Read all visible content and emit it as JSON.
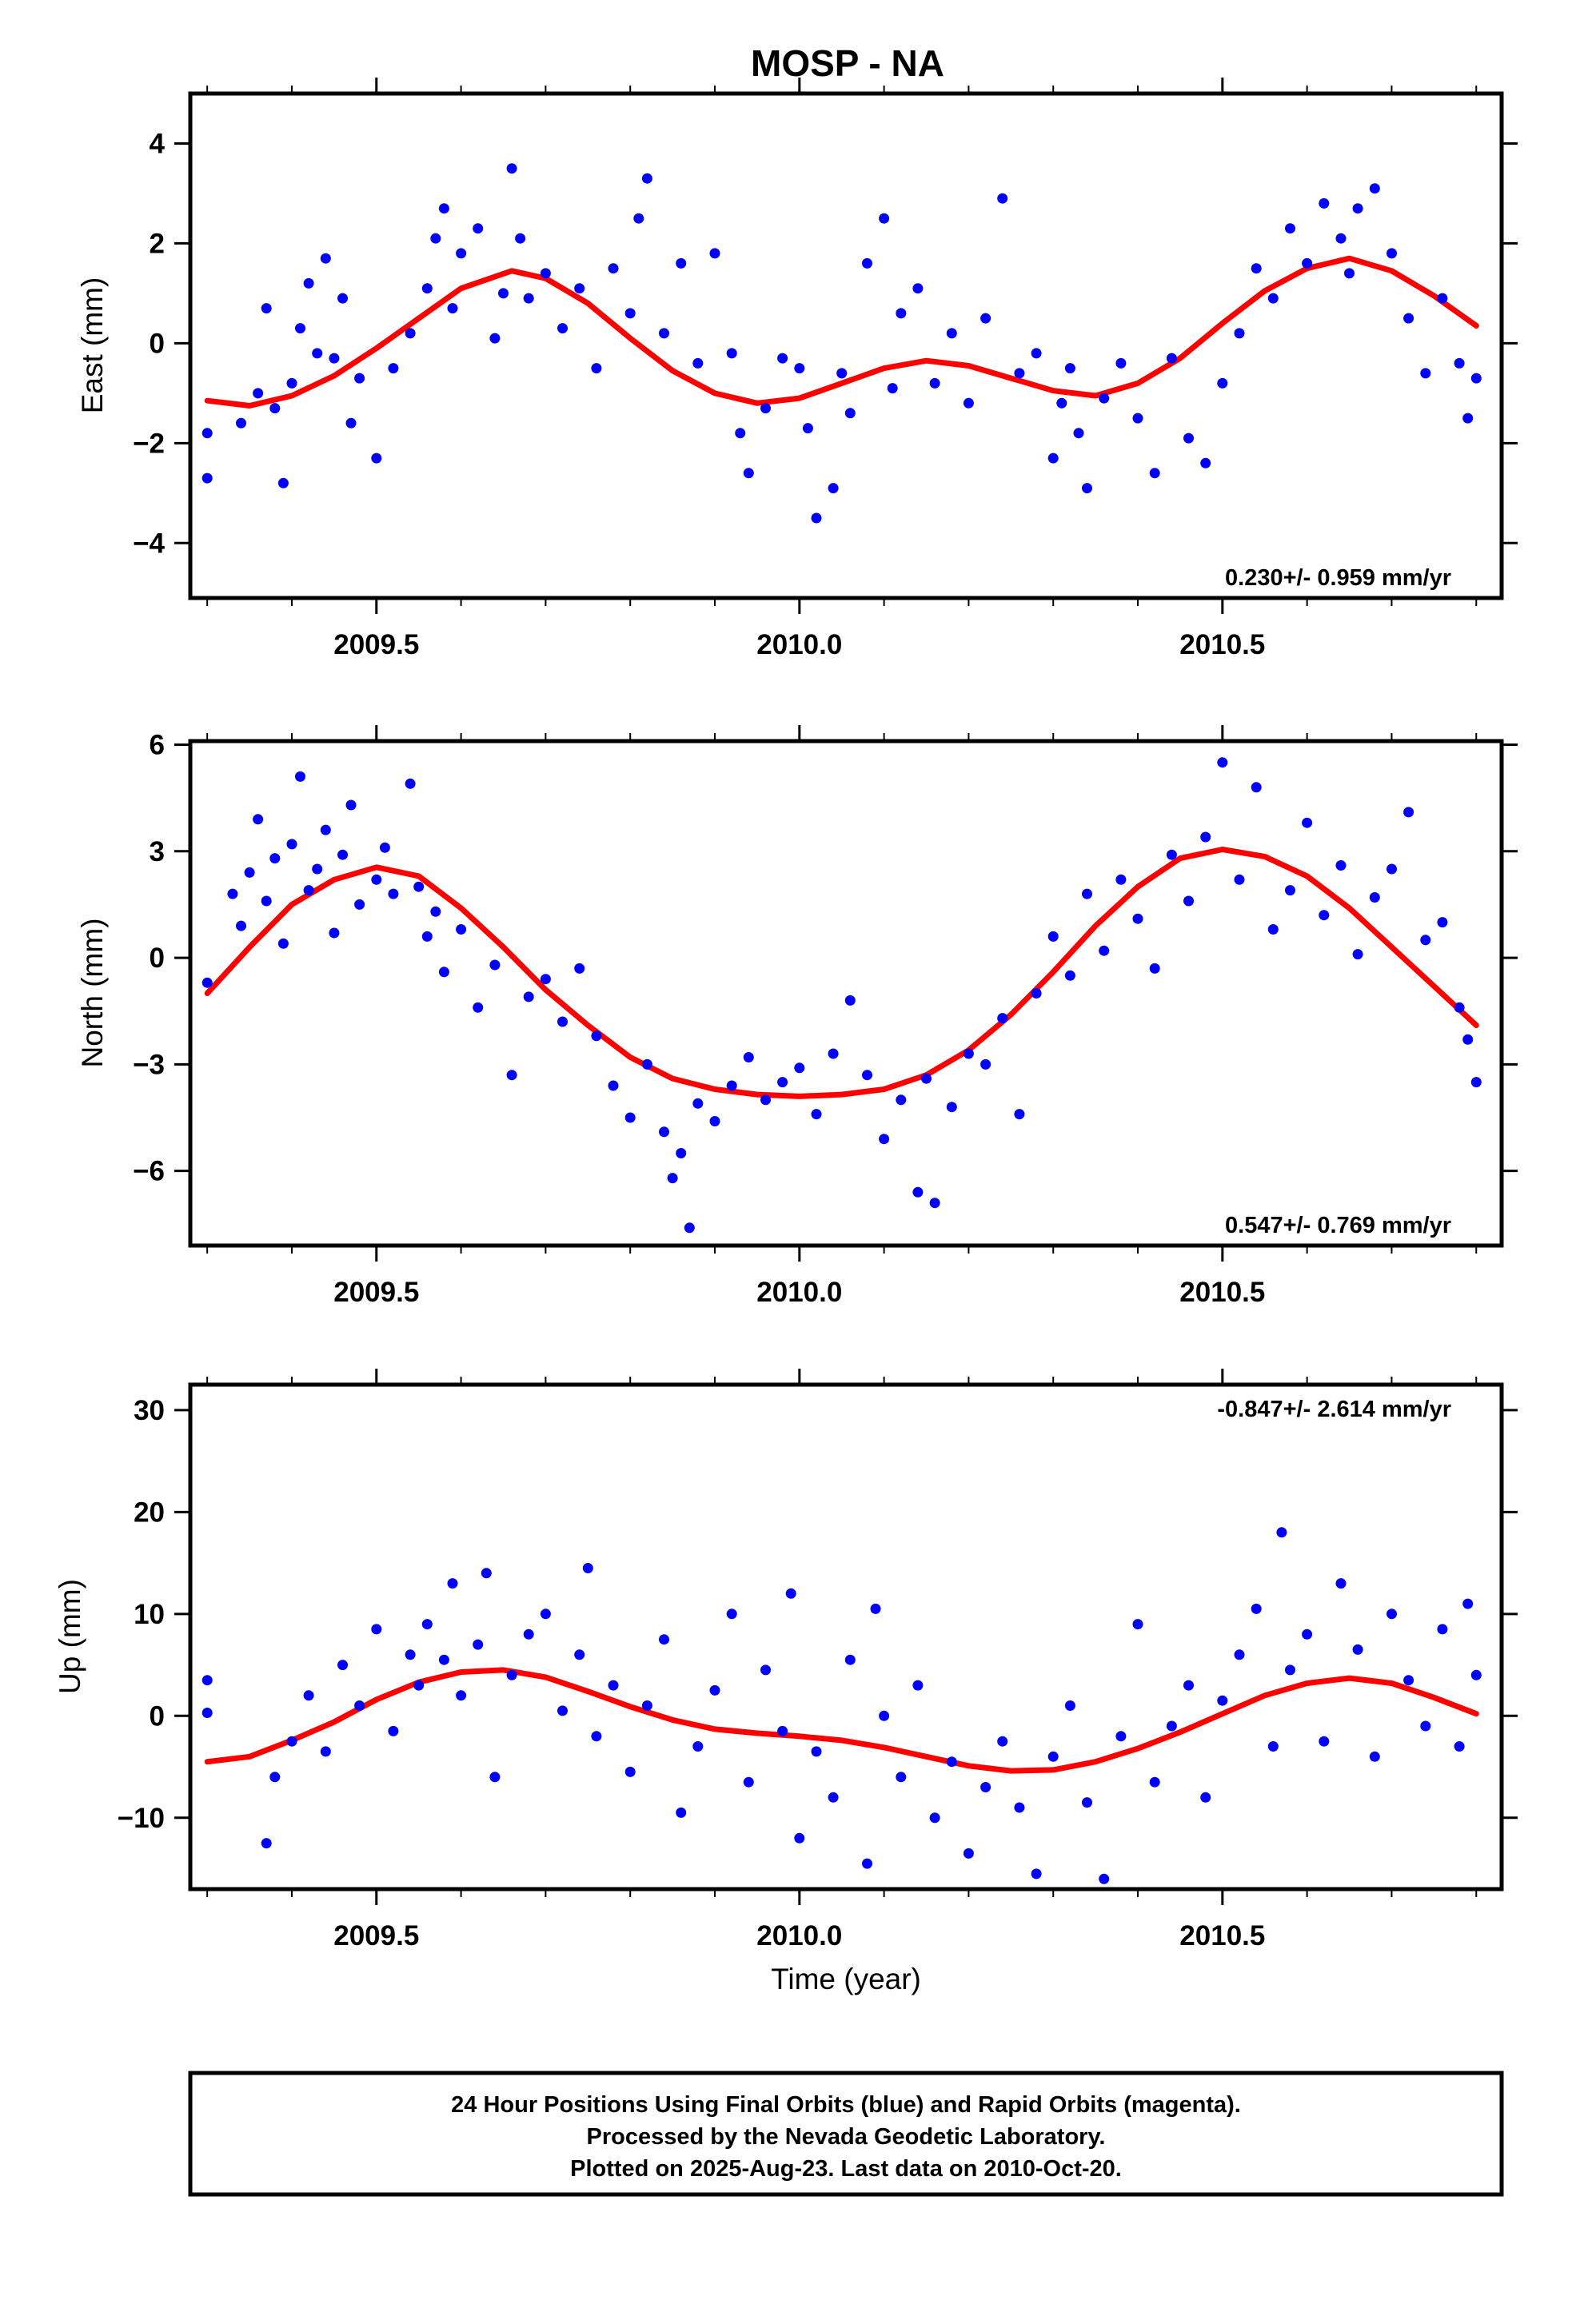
{
  "chart_data": {
    "type": "scatter",
    "title": "MOSP - NA",
    "xlabel": "Time (year)",
    "x_tick_labels": [
      "2009.5",
      "2010.0",
      "2010.5"
    ],
    "x_range": [
      2009.28,
      2010.83
    ],
    "point_color": "#0000ff",
    "fit_color": "#ff0000",
    "panels": [
      {
        "name": "east",
        "ylabel": "East (mm)",
        "ylim": [
          -5.1,
          5.0
        ],
        "y_tick_labels": [
          "4",
          "2",
          "0",
          "−2",
          "−4"
        ],
        "y_ticks": [
          4,
          2,
          0,
          -2,
          -4
        ],
        "rate_text": "0.230+/- 0.959 mm/yr",
        "fit": {
          "x": [
            2009.3,
            2009.35,
            2009.4,
            2009.45,
            2009.5,
            2009.55,
            2009.6,
            2009.66,
            2009.7,
            2009.75,
            2009.8,
            2009.85,
            2009.9,
            2009.95,
            2010.0,
            2010.05,
            2010.1,
            2010.15,
            2010.2,
            2010.25,
            2010.3,
            2010.35,
            2010.4,
            2010.45,
            2010.5,
            2010.55,
            2010.6,
            2010.65,
            2010.7,
            2010.75,
            2010.8
          ],
          "y": [
            -1.15,
            -1.25,
            -1.05,
            -0.65,
            -0.1,
            0.5,
            1.1,
            1.45,
            1.3,
            0.8,
            0.1,
            -0.55,
            -1.0,
            -1.2,
            -1.1,
            -0.8,
            -0.5,
            -0.35,
            -0.45,
            -0.7,
            -0.95,
            -1.05,
            -0.8,
            -0.3,
            0.4,
            1.05,
            1.5,
            1.7,
            1.45,
            0.95,
            0.35
          ]
        },
        "points": {
          "x": [
            2009.3,
            2009.3,
            2009.34,
            2009.36,
            2009.37,
            2009.38,
            2009.39,
            2009.4,
            2009.41,
            2009.42,
            2009.43,
            2009.44,
            2009.45,
            2009.46,
            2009.47,
            2009.48,
            2009.5,
            2009.52,
            2009.54,
            2009.56,
            2009.57,
            2009.58,
            2009.59,
            2009.6,
            2009.62,
            2009.64,
            2009.65,
            2009.66,
            2009.67,
            2009.68,
            2009.7,
            2009.72,
            2009.74,
            2009.76,
            2009.78,
            2009.8,
            2009.81,
            2009.82,
            2009.84,
            2009.86,
            2009.88,
            2009.9,
            2009.92,
            2009.93,
            2009.94,
            2009.96,
            2009.98,
            2010.0,
            2010.01,
            2010.02,
            2010.04,
            2010.05,
            2010.06,
            2010.08,
            2010.1,
            2010.11,
            2010.12,
            2010.14,
            2010.16,
            2010.18,
            2010.2,
            2010.22,
            2010.24,
            2010.26,
            2010.28,
            2010.3,
            2010.31,
            2010.32,
            2010.33,
            2010.34,
            2010.36,
            2010.38,
            2010.4,
            2010.42,
            2010.44,
            2010.46,
            2010.48,
            2010.5,
            2010.52,
            2010.54,
            2010.56,
            2010.58,
            2010.6,
            2010.62,
            2010.64,
            2010.65,
            2010.66,
            2010.68,
            2010.7,
            2010.72,
            2010.74,
            2010.76,
            2010.78,
            2010.79,
            2010.8
          ],
          "y": [
            -1.8,
            -2.7,
            -1.6,
            -1.0,
            0.7,
            -1.3,
            -2.8,
            -0.8,
            0.3,
            1.2,
            -0.2,
            1.7,
            -0.3,
            0.9,
            -1.6,
            -0.7,
            -2.3,
            -0.5,
            0.2,
            1.1,
            2.1,
            2.7,
            0.7,
            1.8,
            2.3,
            0.1,
            1.0,
            3.5,
            2.1,
            0.9,
            1.4,
            0.3,
            1.1,
            -0.5,
            1.5,
            0.6,
            2.5,
            3.3,
            0.2,
            1.6,
            -0.4,
            1.8,
            -0.2,
            -1.8,
            -2.6,
            -1.3,
            -0.3,
            -0.5,
            -1.7,
            -3.5,
            -2.9,
            -0.6,
            -1.4,
            1.6,
            2.5,
            -0.9,
            0.6,
            1.1,
            -0.8,
            0.2,
            -1.2,
            0.5,
            2.9,
            -0.6,
            -0.2,
            -2.3,
            -1.2,
            -0.5,
            -1.8,
            -2.9,
            -1.1,
            -0.4,
            -1.5,
            -2.6,
            -0.3,
            -1.9,
            -2.4,
            -0.8,
            0.2,
            1.5,
            0.9,
            2.3,
            1.6,
            2.8,
            2.1,
            1.4,
            2.7,
            3.1,
            1.8,
            0.5,
            -0.6,
            0.9,
            -0.4,
            -1.5,
            -0.7
          ]
        }
      },
      {
        "name": "north",
        "ylabel": "North (mm)",
        "ylim": [
          -8.1,
          6.1
        ],
        "y_tick_labels": [
          "6",
          "3",
          "0",
          "−3",
          "−6"
        ],
        "y_ticks": [
          6,
          3,
          0,
          -3,
          -6
        ],
        "rate_text": "0.547+/- 0.769 mm/yr",
        "fit": {
          "x": [
            2009.3,
            2009.35,
            2009.4,
            2009.45,
            2009.5,
            2009.55,
            2009.6,
            2009.65,
            2009.7,
            2009.75,
            2009.8,
            2009.85,
            2009.9,
            2009.95,
            2010.0,
            2010.05,
            2010.1,
            2010.15,
            2010.2,
            2010.25,
            2010.3,
            2010.35,
            2010.4,
            2010.45,
            2010.5,
            2010.55,
            2010.6,
            2010.65,
            2010.7,
            2010.75,
            2010.8
          ],
          "y": [
            -1.0,
            0.3,
            1.5,
            2.2,
            2.55,
            2.3,
            1.4,
            0.3,
            -0.9,
            -1.9,
            -2.8,
            -3.4,
            -3.7,
            -3.85,
            -3.9,
            -3.85,
            -3.7,
            -3.3,
            -2.6,
            -1.6,
            -0.4,
            0.9,
            2.0,
            2.8,
            3.05,
            2.85,
            2.3,
            1.4,
            0.3,
            -0.8,
            -1.9
          ]
        },
        "points": {
          "x": [
            2009.3,
            2009.33,
            2009.34,
            2009.35,
            2009.36,
            2009.37,
            2009.38,
            2009.39,
            2009.4,
            2009.41,
            2009.42,
            2009.43,
            2009.44,
            2009.45,
            2009.46,
            2009.47,
            2009.48,
            2009.5,
            2009.51,
            2009.52,
            2009.54,
            2009.55,
            2009.56,
            2009.57,
            2009.58,
            2009.6,
            2009.62,
            2009.64,
            2009.66,
            2009.68,
            2009.7,
            2009.72,
            2009.74,
            2009.76,
            2009.78,
            2009.8,
            2009.82,
            2009.84,
            2009.85,
            2009.86,
            2009.87,
            2009.88,
            2009.9,
            2009.92,
            2009.94,
            2009.96,
            2009.98,
            2010.0,
            2010.02,
            2010.04,
            2010.06,
            2010.08,
            2010.1,
            2010.12,
            2010.14,
            2010.15,
            2010.16,
            2010.18,
            2010.2,
            2010.22,
            2010.24,
            2010.26,
            2010.28,
            2010.3,
            2010.32,
            2010.34,
            2010.36,
            2010.38,
            2010.4,
            2010.42,
            2010.44,
            2010.46,
            2010.48,
            2010.5,
            2010.52,
            2010.54,
            2010.56,
            2010.58,
            2010.6,
            2010.62,
            2010.64,
            2010.66,
            2010.68,
            2010.7,
            2010.72,
            2010.74,
            2010.76,
            2010.78,
            2010.79,
            2010.8
          ],
          "y": [
            -0.7,
            1.8,
            0.9,
            2.4,
            3.9,
            1.6,
            2.8,
            0.4,
            3.2,
            5.1,
            1.9,
            2.5,
            3.6,
            0.7,
            2.9,
            4.3,
            1.5,
            2.2,
            3.1,
            1.8,
            4.9,
            2.0,
            0.6,
            1.3,
            -0.4,
            0.8,
            -1.4,
            -0.2,
            -3.3,
            -1.1,
            -0.6,
            -1.8,
            -0.3,
            -2.2,
            -3.6,
            -4.5,
            -3.0,
            -4.9,
            -6.2,
            -5.5,
            -7.6,
            -4.1,
            -4.6,
            -3.6,
            -2.8,
            -4.0,
            -3.5,
            -3.1,
            -4.4,
            -2.7,
            -1.2,
            -3.3,
            -5.1,
            -4.0,
            -6.6,
            -3.4,
            -6.9,
            -4.2,
            -2.7,
            -3.0,
            -1.7,
            -4.4,
            -1.0,
            0.6,
            -0.5,
            1.8,
            0.2,
            2.2,
            1.1,
            -0.3,
            2.9,
            1.6,
            3.4,
            5.5,
            2.2,
            4.8,
            0.8,
            1.9,
            3.8,
            1.2,
            2.6,
            0.1,
            1.7,
            2.5,
            4.1,
            0.5,
            1.0,
            -1.4,
            -2.3,
            -3.5
          ]
        }
      },
      {
        "name": "up",
        "ylabel": "Up (mm)",
        "ylim": [
          -17,
          32.5
        ],
        "y_tick_labels": [
          "30",
          "20",
          "10",
          "0",
          "−10"
        ],
        "y_ticks": [
          30,
          20,
          10,
          0,
          -10
        ],
        "rate_text": "-0.847+/- 2.614 mm/yr",
        "fit": {
          "x": [
            2009.3,
            2009.35,
            2009.4,
            2009.45,
            2009.5,
            2009.55,
            2009.6,
            2009.65,
            2009.7,
            2009.75,
            2009.8,
            2009.85,
            2009.9,
            2009.95,
            2010.0,
            2010.05,
            2010.1,
            2010.15,
            2010.2,
            2010.25,
            2010.3,
            2010.35,
            2010.4,
            2010.45,
            2010.5,
            2010.55,
            2010.6,
            2010.65,
            2010.7,
            2010.75,
            2010.8
          ],
          "y": [
            -4.5,
            -4.0,
            -2.4,
            -0.6,
            1.6,
            3.3,
            4.3,
            4.5,
            3.8,
            2.4,
            0.9,
            -0.4,
            -1.3,
            -1.7,
            -2.0,
            -2.4,
            -3.1,
            -4.0,
            -4.9,
            -5.4,
            -5.3,
            -4.5,
            -3.2,
            -1.6,
            0.2,
            2.0,
            3.2,
            3.7,
            3.2,
            1.8,
            0.2
          ]
        },
        "points": {
          "x": [
            2009.3,
            2009.3,
            2009.37,
            2009.38,
            2009.4,
            2009.42,
            2009.44,
            2009.46,
            2009.48,
            2009.5,
            2009.52,
            2009.54,
            2009.55,
            2009.56,
            2009.58,
            2009.59,
            2009.6,
            2009.62,
            2009.63,
            2009.64,
            2009.66,
            2009.68,
            2009.7,
            2009.72,
            2009.74,
            2009.75,
            2009.76,
            2009.78,
            2009.8,
            2009.82,
            2009.84,
            2009.86,
            2009.88,
            2009.9,
            2009.92,
            2009.94,
            2009.96,
            2009.98,
            2009.99,
            2010.0,
            2010.02,
            2010.04,
            2010.06,
            2010.08,
            2010.09,
            2010.1,
            2010.12,
            2010.14,
            2010.16,
            2010.18,
            2010.2,
            2010.22,
            2010.24,
            2010.26,
            2010.28,
            2010.3,
            2010.32,
            2010.34,
            2010.36,
            2010.38,
            2010.4,
            2010.42,
            2010.44,
            2010.46,
            2010.48,
            2010.5,
            2010.52,
            2010.54,
            2010.56,
            2010.57,
            2010.58,
            2010.6,
            2010.62,
            2010.64,
            2010.66,
            2010.68,
            2010.7,
            2010.72,
            2010.74,
            2010.76,
            2010.78,
            2010.79,
            2010.8
          ],
          "y": [
            3.5,
            0.3,
            -12.5,
            -6.0,
            -2.5,
            2.0,
            -3.5,
            5.0,
            1.0,
            8.5,
            -1.5,
            6.0,
            3.0,
            9.0,
            5.5,
            13.0,
            2.0,
            7.0,
            14.0,
            -6.0,
            4.0,
            8.0,
            10.0,
            0.5,
            6.0,
            14.5,
            -2.0,
            3.0,
            -5.5,
            1.0,
            7.5,
            -9.5,
            -3.0,
            2.5,
            10.0,
            -6.5,
            4.5,
            -1.5,
            12.0,
            -12.0,
            -3.5,
            -8.0,
            5.5,
            -14.5,
            10.5,
            0.0,
            -6.0,
            3.0,
            -10.0,
            -4.5,
            -13.5,
            -7.0,
            -2.5,
            -9.0,
            -15.5,
            -4.0,
            1.0,
            -8.5,
            -16.0,
            -2.0,
            9.0,
            -6.5,
            -1.0,
            3.0,
            -8.0,
            1.5,
            6.0,
            10.5,
            -3.0,
            18.0,
            4.5,
            8.0,
            -2.5,
            13.0,
            6.5,
            -4.0,
            10.0,
            3.5,
            -1.0,
            8.5,
            -3.0,
            11.0,
            4.0
          ]
        }
      }
    ]
  },
  "footer": {
    "line1": "24 Hour Positions Using Final Orbits (blue) and Rapid Orbits (magenta).",
    "line2": "Processed by the Nevada Geodetic Laboratory.",
    "line3": "Plotted on 2025-Aug-23. Last data on 2010-Oct-20."
  }
}
